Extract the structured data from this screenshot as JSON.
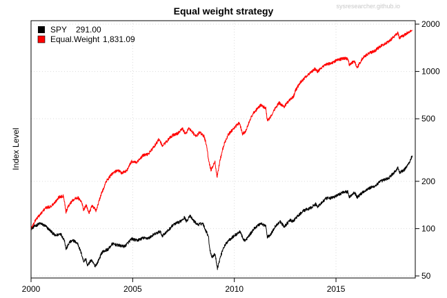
{
  "chart_data": {
    "type": "line",
    "title": "Equal weight strategy",
    "watermark": "sysresearcher.github.io",
    "ylabel": "Index Level",
    "xlabel": "",
    "x_ticks": [
      "2000",
      "2005",
      "2010",
      "2015"
    ],
    "y_ticks": [
      "50",
      "100",
      "200",
      "500",
      "1000",
      "2000"
    ],
    "y_scale": "log",
    "ylim": [
      50,
      2000
    ],
    "xlim": [
      2000,
      2018.9
    ],
    "grid": true,
    "legend_position": "top-left",
    "series": [
      {
        "name": "SPY",
        "value_label": "291.00",
        "color": "#000000",
        "points": [
          [
            2000.0,
            100
          ],
          [
            2000.2,
            104
          ],
          [
            2000.45,
            108
          ],
          [
            2000.7,
            104
          ],
          [
            2000.95,
            97
          ],
          [
            2001.2,
            90
          ],
          [
            2001.45,
            93
          ],
          [
            2001.65,
            84
          ],
          [
            2001.72,
            74
          ],
          [
            2001.9,
            82
          ],
          [
            2002.1,
            84
          ],
          [
            2002.3,
            80
          ],
          [
            2002.5,
            68
          ],
          [
            2002.58,
            62
          ],
          [
            2002.7,
            64
          ],
          [
            2002.78,
            58
          ],
          [
            2002.95,
            63
          ],
          [
            2003.15,
            58
          ],
          [
            2003.25,
            60
          ],
          [
            2003.5,
            71
          ],
          [
            2003.8,
            74
          ],
          [
            2004.0,
            80
          ],
          [
            2004.35,
            78
          ],
          [
            2004.6,
            77
          ],
          [
            2004.95,
            86
          ],
          [
            2005.2,
            84
          ],
          [
            2005.5,
            87
          ],
          [
            2005.8,
            87
          ],
          [
            2006.0,
            91
          ],
          [
            2006.35,
            96
          ],
          [
            2006.45,
            90
          ],
          [
            2006.7,
            96
          ],
          [
            2007.0,
            106
          ],
          [
            2007.15,
            108
          ],
          [
            2007.3,
            110
          ],
          [
            2007.55,
            118
          ],
          [
            2007.65,
            111
          ],
          [
            2007.8,
            121
          ],
          [
            2008.0,
            112
          ],
          [
            2008.2,
            106
          ],
          [
            2008.45,
            108
          ],
          [
            2008.6,
            97
          ],
          [
            2008.72,
            90
          ],
          [
            2008.8,
            73
          ],
          [
            2008.9,
            66
          ],
          [
            2009.05,
            69
          ],
          [
            2009.17,
            56
          ],
          [
            2009.3,
            65
          ],
          [
            2009.45,
            75
          ],
          [
            2009.7,
            84
          ],
          [
            2010.0,
            90
          ],
          [
            2010.3,
            96
          ],
          [
            2010.42,
            86
          ],
          [
            2010.55,
            84
          ],
          [
            2010.8,
            93
          ],
          [
            2011.0,
            101
          ],
          [
            2011.3,
            108
          ],
          [
            2011.55,
            104
          ],
          [
            2011.62,
            88
          ],
          [
            2011.8,
            92
          ],
          [
            2012.0,
            103
          ],
          [
            2012.25,
            111
          ],
          [
            2012.45,
            103
          ],
          [
            2012.75,
            113
          ],
          [
            2012.9,
            111
          ],
          [
            2013.0,
            116
          ],
          [
            2013.4,
            130
          ],
          [
            2013.7,
            134
          ],
          [
            2014.0,
            143
          ],
          [
            2014.1,
            138
          ],
          [
            2014.5,
            155
          ],
          [
            2014.8,
            157
          ],
          [
            2015.0,
            161
          ],
          [
            2015.4,
            172
          ],
          [
            2015.6,
            171
          ],
          [
            2015.65,
            158
          ],
          [
            2015.9,
            171
          ],
          [
            2016.05,
            158
          ],
          [
            2016.3,
            170
          ],
          [
            2016.6,
            180
          ],
          [
            2016.9,
            186
          ],
          [
            2017.2,
            200
          ],
          [
            2017.6,
            210
          ],
          [
            2017.95,
            234
          ],
          [
            2018.05,
            246
          ],
          [
            2018.12,
            226
          ],
          [
            2018.35,
            236
          ],
          [
            2018.6,
            262
          ],
          [
            2018.75,
            291
          ]
        ]
      },
      {
        "name": "Equal.Weight",
        "value_label": "1,831.09",
        "color": "#ff0000",
        "points": [
          [
            2000.0,
            100
          ],
          [
            2000.25,
            115
          ],
          [
            2000.5,
            125
          ],
          [
            2000.7,
            135
          ],
          [
            2000.95,
            138
          ],
          [
            2001.15,
            145
          ],
          [
            2001.35,
            158
          ],
          [
            2001.6,
            162
          ],
          [
            2001.72,
            128
          ],
          [
            2001.85,
            140
          ],
          [
            2002.05,
            152
          ],
          [
            2002.3,
            158
          ],
          [
            2002.5,
            146
          ],
          [
            2002.58,
            132
          ],
          [
            2002.72,
            140
          ],
          [
            2002.85,
            126
          ],
          [
            2003.0,
            140
          ],
          [
            2003.2,
            130
          ],
          [
            2003.45,
            165
          ],
          [
            2003.7,
            200
          ],
          [
            2003.95,
            220
          ],
          [
            2004.25,
            236
          ],
          [
            2004.45,
            226
          ],
          [
            2004.7,
            233
          ],
          [
            2004.95,
            268
          ],
          [
            2005.2,
            262
          ],
          [
            2005.5,
            292
          ],
          [
            2005.75,
            297
          ],
          [
            2006.0,
            325
          ],
          [
            2006.3,
            372
          ],
          [
            2006.45,
            335
          ],
          [
            2006.7,
            362
          ],
          [
            2006.95,
            392
          ],
          [
            2007.2,
            402
          ],
          [
            2007.45,
            432
          ],
          [
            2007.6,
            398
          ],
          [
            2007.75,
            436
          ],
          [
            2007.95,
            410
          ],
          [
            2008.1,
            386
          ],
          [
            2008.3,
            411
          ],
          [
            2008.5,
            388
          ],
          [
            2008.62,
            345
          ],
          [
            2008.75,
            265
          ],
          [
            2008.85,
            236
          ],
          [
            2008.95,
            250
          ],
          [
            2009.05,
            265
          ],
          [
            2009.15,
            212
          ],
          [
            2009.3,
            275
          ],
          [
            2009.5,
            345
          ],
          [
            2009.7,
            396
          ],
          [
            2009.95,
            432
          ],
          [
            2010.25,
            473
          ],
          [
            2010.4,
            402
          ],
          [
            2010.55,
            412
          ],
          [
            2010.75,
            490
          ],
          [
            2011.0,
            557
          ],
          [
            2011.3,
            610
          ],
          [
            2011.55,
            582
          ],
          [
            2011.62,
            485
          ],
          [
            2011.75,
            505
          ],
          [
            2011.95,
            566
          ],
          [
            2012.2,
            632
          ],
          [
            2012.45,
            596
          ],
          [
            2012.7,
            658
          ],
          [
            2012.9,
            685
          ],
          [
            2013.0,
            755
          ],
          [
            2013.3,
            870
          ],
          [
            2013.6,
            945
          ],
          [
            2013.95,
            1040
          ],
          [
            2014.1,
            1000
          ],
          [
            2014.5,
            1110
          ],
          [
            2014.8,
            1125
          ],
          [
            2015.0,
            1175
          ],
          [
            2015.4,
            1215
          ],
          [
            2015.6,
            1200
          ],
          [
            2015.65,
            1100
          ],
          [
            2015.9,
            1160
          ],
          [
            2016.05,
            1060
          ],
          [
            2016.3,
            1215
          ],
          [
            2016.6,
            1300
          ],
          [
            2016.9,
            1350
          ],
          [
            2017.2,
            1450
          ],
          [
            2017.6,
            1550
          ],
          [
            2017.95,
            1720
          ],
          [
            2018.05,
            1760
          ],
          [
            2018.12,
            1640
          ],
          [
            2018.35,
            1700
          ],
          [
            2018.6,
            1790
          ],
          [
            2018.75,
            1831
          ]
        ]
      }
    ]
  }
}
